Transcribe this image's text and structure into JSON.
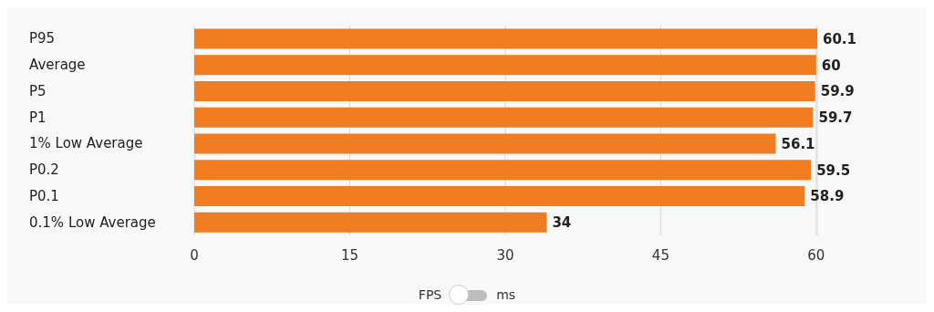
{
  "chart_data": {
    "type": "bar",
    "orientation": "horizontal",
    "categories": [
      "P95",
      "Average",
      "P5",
      "P1",
      "1% Low Average",
      "P0.2",
      "P0.1",
      "0.1% Low Average"
    ],
    "values": [
      60.1,
      60,
      59.9,
      59.7,
      56.1,
      59.5,
      58.9,
      34
    ],
    "color": "#f07d22",
    "xlim": [
      0,
      60.1
    ],
    "xticks": [
      0,
      15,
      30,
      45,
      60
    ],
    "grid": "x",
    "data_labels": true,
    "annotations": [
      "FPS",
      "ms"
    ]
  }
}
